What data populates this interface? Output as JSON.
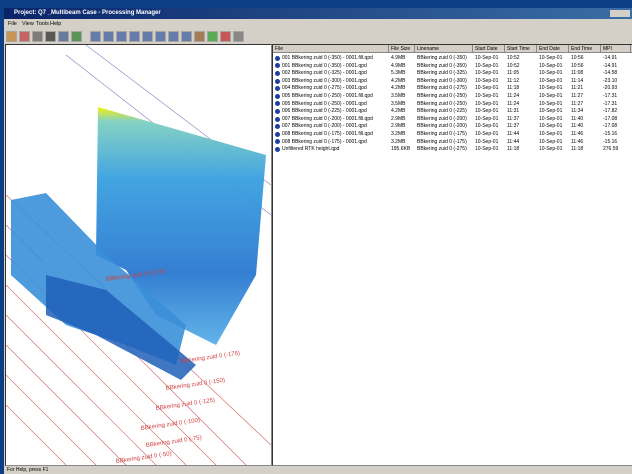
{
  "window": {
    "title": "Project: Q7 _Multibeam Case - Processing Manager",
    "menu": [
      "File",
      "View",
      "Tools",
      "Help"
    ],
    "status": "For Help, press F1"
  },
  "table": {
    "columns": [
      "File",
      "File Size",
      "Linename",
      "Start Date",
      "Start Time",
      "End Date",
      "End Time",
      "MPI"
    ],
    "rows": [
      [
        "001 BBkering zuid 0 (-350) - 0001.fill.qpd",
        "4.9MB",
        "BBkering zuid 0 (-350)",
        "10-Sep-01",
        "10:52",
        "10-Sep-01",
        "10:56",
        "-14.91"
      ],
      [
        "001 BBkering zuid 0 (-350) - 0001.qpd",
        "4.9MB",
        "BBkering zuid 0 (-350)",
        "10-Sep-01",
        "10:52",
        "10-Sep-01",
        "10:56",
        "-14.91"
      ],
      [
        "002 BBkering zuid 0 (-325) - 0001.qpd",
        "5.3MB",
        "BBkering zuid 0 (-325)",
        "10-Sep-01",
        "11:05",
        "10-Sep-01",
        "11:08",
        "-14.58"
      ],
      [
        "003 BBkering zuid 0 (-300) - 0001.qpd",
        "4.2MB",
        "BBkering zuid 0 (-300)",
        "10-Sep-01",
        "11:12",
        "10-Sep-01",
        "11:14",
        "-23.10"
      ],
      [
        "004 BBkering zuid 0 (-275) - 0001.qpd",
        "4.2MB",
        "BBkering zuid 0 (-275)",
        "10-Sep-01",
        "11:18",
        "10-Sep-01",
        "11:21",
        "-20.93"
      ],
      [
        "005 BBkering zuid 0 (-250) - 0001.fill.qpd",
        "3.5MB",
        "BBkering zuid 0 (-250)",
        "10-Sep-01",
        "11:24",
        "10-Sep-01",
        "11:27",
        "-17.31"
      ],
      [
        "005 BBkering zuid 0 (-250) - 0001.qpd",
        "3.5MB",
        "BBkering zuid 0 (-250)",
        "10-Sep-01",
        "11:24",
        "10-Sep-01",
        "11:27",
        "-17.31"
      ],
      [
        "006 BBkering zuid 0 (-225) - 0001.qpd",
        "4.2MB",
        "BBkering zuid 0 (-225)",
        "10-Sep-01",
        "11:31",
        "10-Sep-01",
        "11:34",
        "-17.82"
      ],
      [
        "007 BBkering zuid 0 (-200) - 0001.fill.qpd",
        "2.9MB",
        "BBkering zuid 0 (-200)",
        "10-Sep-01",
        "11:37",
        "10-Sep-01",
        "11:40",
        "-17.08"
      ],
      [
        "007 BBkering zuid 0 (-200) - 0001.qpd",
        "2.9MB",
        "BBkering zuid 0 (-200)",
        "10-Sep-01",
        "11:37",
        "10-Sep-01",
        "11:40",
        "-17.08"
      ],
      [
        "008 BBkering zuid 0 (-175) - 0001.fill.qpd",
        "3.2MB",
        "BBkering zuid 0 (-175)",
        "10-Sep-01",
        "11:44",
        "10-Sep-01",
        "11:46",
        "-15.16"
      ],
      [
        "008 BBkering zuid 0 (-175) - 0001.qpd",
        "3.2MB",
        "BBkering zuid 0 (-175)",
        "10-Sep-01",
        "11:44",
        "10-Sep-01",
        "11:46",
        "-15.16"
      ],
      [
        "Unfiltered RTK height.qpd",
        "195.6KB",
        "BBkering zuid 0 (-275)",
        "10-Sep-01",
        "11:18",
        "10-Sep-01",
        "11:18",
        "276.59"
      ]
    ]
  },
  "map": {
    "labels": [
      "BBkering zuid 0 (-275)",
      "BBkering zuid 0 (-175)",
      "BBkering zuid 0 (-150)",
      "BBkering zuid 0 (-125)",
      "BBkering zuid 0 (-100)",
      "BBkering zuid 0 (-75)",
      "BBkering zuid 0 (-50)"
    ]
  }
}
